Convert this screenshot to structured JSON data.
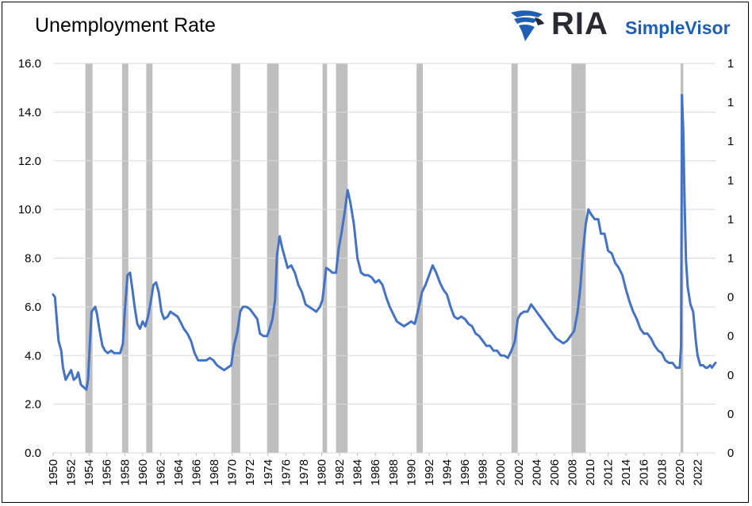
{
  "chart_data": {
    "type": "line",
    "title": "Unemployment Rate",
    "xlim": [
      1950,
      2024
    ],
    "ylim": [
      0,
      16
    ],
    "y_ticks": [
      "0.0",
      "2.0",
      "4.0",
      "6.0",
      "8.0",
      "10.0",
      "12.0",
      "14.0",
      "16.0"
    ],
    "y2_ticks": [
      "0",
      "0",
      "0",
      "0",
      "0",
      "1",
      "1",
      "1",
      "1",
      "1",
      "1"
    ],
    "x_ticks": [
      1950,
      1952,
      1954,
      1956,
      1958,
      1960,
      1962,
      1964,
      1966,
      1968,
      1970,
      1972,
      1974,
      1976,
      1978,
      1980,
      1982,
      1984,
      1986,
      1988,
      1990,
      1992,
      1994,
      1996,
      1998,
      2000,
      2002,
      2004,
      2006,
      2008,
      2010,
      2012,
      2014,
      2016,
      2018,
      2020,
      2022
    ],
    "grid": true,
    "line_color": "#4472c4",
    "recession_color": "#bfbfbf",
    "recessions": [
      [
        1953.6,
        1954.4
      ],
      [
        1957.7,
        1958.4
      ],
      [
        1960.4,
        1961.1
      ],
      [
        1969.9,
        1970.9
      ],
      [
        1973.9,
        1975.2
      ],
      [
        1980.1,
        1980.6
      ],
      [
        1981.6,
        1982.9
      ],
      [
        1990.6,
        1991.3
      ],
      [
        2001.2,
        2001.9
      ],
      [
        2007.9,
        2009.5
      ],
      [
        2020.1,
        2020.4
      ]
    ],
    "series": [
      {
        "values": [
          [
            1950.0,
            6.5
          ],
          [
            1950.2,
            6.4
          ],
          [
            1950.4,
            5.5
          ],
          [
            1950.6,
            4.6
          ],
          [
            1950.9,
            4.2
          ],
          [
            1951.1,
            3.5
          ],
          [
            1951.4,
            3.0
          ],
          [
            1951.7,
            3.2
          ],
          [
            1952.0,
            3.4
          ],
          [
            1952.3,
            3.0
          ],
          [
            1952.6,
            3.1
          ],
          [
            1952.8,
            3.3
          ],
          [
            1953.1,
            2.8
          ],
          [
            1953.4,
            2.7
          ],
          [
            1953.7,
            2.6
          ],
          [
            1953.9,
            3.0
          ],
          [
            1954.1,
            4.5
          ],
          [
            1954.3,
            5.8
          ],
          [
            1954.5,
            5.9
          ],
          [
            1954.7,
            6.0
          ],
          [
            1954.9,
            5.7
          ],
          [
            1955.2,
            5.0
          ],
          [
            1955.5,
            4.4
          ],
          [
            1955.8,
            4.2
          ],
          [
            1956.1,
            4.1
          ],
          [
            1956.5,
            4.2
          ],
          [
            1956.8,
            4.1
          ],
          [
            1957.1,
            4.1
          ],
          [
            1957.5,
            4.1
          ],
          [
            1957.8,
            4.5
          ],
          [
            1958.0,
            5.8
          ],
          [
            1958.3,
            7.3
          ],
          [
            1958.6,
            7.4
          ],
          [
            1958.9,
            6.6
          ],
          [
            1959.1,
            6.0
          ],
          [
            1959.4,
            5.3
          ],
          [
            1959.7,
            5.1
          ],
          [
            1960.0,
            5.4
          ],
          [
            1960.3,
            5.2
          ],
          [
            1960.6,
            5.6
          ],
          [
            1960.9,
            6.2
          ],
          [
            1961.2,
            6.9
          ],
          [
            1961.5,
            7.0
          ],
          [
            1961.8,
            6.6
          ],
          [
            1962.1,
            5.8
          ],
          [
            1962.4,
            5.5
          ],
          [
            1962.8,
            5.6
          ],
          [
            1963.1,
            5.8
          ],
          [
            1963.5,
            5.7
          ],
          [
            1963.9,
            5.6
          ],
          [
            1964.2,
            5.4
          ],
          [
            1964.6,
            5.1
          ],
          [
            1965.0,
            4.9
          ],
          [
            1965.4,
            4.6
          ],
          [
            1965.8,
            4.1
          ],
          [
            1966.2,
            3.8
          ],
          [
            1966.7,
            3.8
          ],
          [
            1967.1,
            3.8
          ],
          [
            1967.5,
            3.9
          ],
          [
            1967.9,
            3.8
          ],
          [
            1968.3,
            3.6
          ],
          [
            1968.7,
            3.5
          ],
          [
            1969.1,
            3.4
          ],
          [
            1969.5,
            3.5
          ],
          [
            1969.9,
            3.6
          ],
          [
            1970.2,
            4.4
          ],
          [
            1970.6,
            5.0
          ],
          [
            1970.9,
            5.8
          ],
          [
            1971.2,
            6.0
          ],
          [
            1971.6,
            6.0
          ],
          [
            1972.0,
            5.9
          ],
          [
            1972.4,
            5.7
          ],
          [
            1972.8,
            5.5
          ],
          [
            1973.1,
            4.9
          ],
          [
            1973.5,
            4.8
          ],
          [
            1973.9,
            4.8
          ],
          [
            1974.2,
            5.1
          ],
          [
            1974.5,
            5.5
          ],
          [
            1974.8,
            6.3
          ],
          [
            1975.0,
            8.1
          ],
          [
            1975.3,
            8.9
          ],
          [
            1975.6,
            8.4
          ],
          [
            1975.9,
            8.0
          ],
          [
            1976.2,
            7.6
          ],
          [
            1976.6,
            7.7
          ],
          [
            1977.0,
            7.4
          ],
          [
            1977.4,
            6.9
          ],
          [
            1977.8,
            6.6
          ],
          [
            1978.2,
            6.1
          ],
          [
            1978.6,
            6.0
          ],
          [
            1979.0,
            5.9
          ],
          [
            1979.4,
            5.8
          ],
          [
            1979.8,
            6.0
          ],
          [
            1980.1,
            6.3
          ],
          [
            1980.5,
            7.6
          ],
          [
            1980.9,
            7.5
          ],
          [
            1981.2,
            7.4
          ],
          [
            1981.6,
            7.4
          ],
          [
            1981.9,
            8.4
          ],
          [
            1982.2,
            9.0
          ],
          [
            1982.5,
            9.7
          ],
          [
            1982.9,
            10.8
          ],
          [
            1983.2,
            10.3
          ],
          [
            1983.6,
            9.4
          ],
          [
            1984.0,
            8.0
          ],
          [
            1984.4,
            7.4
          ],
          [
            1984.8,
            7.3
          ],
          [
            1985.2,
            7.3
          ],
          [
            1985.6,
            7.2
          ],
          [
            1986.0,
            7.0
          ],
          [
            1986.4,
            7.1
          ],
          [
            1986.8,
            6.9
          ],
          [
            1987.2,
            6.4
          ],
          [
            1987.6,
            6.0
          ],
          [
            1988.0,
            5.7
          ],
          [
            1988.4,
            5.4
          ],
          [
            1988.8,
            5.3
          ],
          [
            1989.2,
            5.2
          ],
          [
            1989.6,
            5.3
          ],
          [
            1990.0,
            5.4
          ],
          [
            1990.4,
            5.3
          ],
          [
            1990.8,
            5.9
          ],
          [
            1991.2,
            6.6
          ],
          [
            1991.6,
            6.9
          ],
          [
            1992.0,
            7.3
          ],
          [
            1992.4,
            7.7
          ],
          [
            1992.8,
            7.4
          ],
          [
            1993.2,
            7.0
          ],
          [
            1993.6,
            6.7
          ],
          [
            1994.0,
            6.5
          ],
          [
            1994.4,
            6.0
          ],
          [
            1994.8,
            5.6
          ],
          [
            1995.2,
            5.5
          ],
          [
            1995.6,
            5.6
          ],
          [
            1996.0,
            5.5
          ],
          [
            1996.4,
            5.3
          ],
          [
            1996.8,
            5.2
          ],
          [
            1997.2,
            4.9
          ],
          [
            1997.6,
            4.8
          ],
          [
            1998.0,
            4.6
          ],
          [
            1998.4,
            4.4
          ],
          [
            1998.8,
            4.4
          ],
          [
            1999.2,
            4.2
          ],
          [
            1999.6,
            4.2
          ],
          [
            2000.0,
            4.0
          ],
          [
            2000.4,
            4.0
          ],
          [
            2000.8,
            3.9
          ],
          [
            2001.2,
            4.2
          ],
          [
            2001.6,
            4.6
          ],
          [
            2001.9,
            5.5
          ],
          [
            2002.2,
            5.7
          ],
          [
            2002.6,
            5.8
          ],
          [
            2003.0,
            5.8
          ],
          [
            2003.4,
            6.1
          ],
          [
            2003.8,
            5.9
          ],
          [
            2004.2,
            5.7
          ],
          [
            2004.6,
            5.5
          ],
          [
            2005.0,
            5.3
          ],
          [
            2005.4,
            5.1
          ],
          [
            2005.8,
            4.9
          ],
          [
            2006.2,
            4.7
          ],
          [
            2006.6,
            4.6
          ],
          [
            2007.0,
            4.5
          ],
          [
            2007.4,
            4.6
          ],
          [
            2007.8,
            4.8
          ],
          [
            2008.2,
            5.0
          ],
          [
            2008.6,
            5.8
          ],
          [
            2008.9,
            6.8
          ],
          [
            2009.2,
            8.3
          ],
          [
            2009.5,
            9.4
          ],
          [
            2009.8,
            10.0
          ],
          [
            2010.1,
            9.8
          ],
          [
            2010.5,
            9.6
          ],
          [
            2010.9,
            9.6
          ],
          [
            2011.2,
            9.0
          ],
          [
            2011.6,
            9.0
          ],
          [
            2012.0,
            8.3
          ],
          [
            2012.4,
            8.2
          ],
          [
            2012.8,
            7.8
          ],
          [
            2013.2,
            7.6
          ],
          [
            2013.6,
            7.3
          ],
          [
            2014.0,
            6.7
          ],
          [
            2014.4,
            6.2
          ],
          [
            2014.8,
            5.8
          ],
          [
            2015.2,
            5.5
          ],
          [
            2015.6,
            5.1
          ],
          [
            2016.0,
            4.9
          ],
          [
            2016.4,
            4.9
          ],
          [
            2016.8,
            4.7
          ],
          [
            2017.2,
            4.4
          ],
          [
            2017.6,
            4.2
          ],
          [
            2018.0,
            4.1
          ],
          [
            2018.4,
            3.8
          ],
          [
            2018.8,
            3.7
          ],
          [
            2019.2,
            3.7
          ],
          [
            2019.6,
            3.5
          ],
          [
            2020.0,
            3.5
          ],
          [
            2020.15,
            4.4
          ],
          [
            2020.25,
            14.7
          ],
          [
            2020.4,
            13.2
          ],
          [
            2020.55,
            10.2
          ],
          [
            2020.7,
            7.9
          ],
          [
            2020.9,
            6.8
          ],
          [
            2021.2,
            6.1
          ],
          [
            2021.5,
            5.8
          ],
          [
            2021.8,
            4.6
          ],
          [
            2022.0,
            4.0
          ],
          [
            2022.3,
            3.6
          ],
          [
            2022.6,
            3.6
          ],
          [
            2022.9,
            3.5
          ],
          [
            2023.1,
            3.5
          ],
          [
            2023.4,
            3.6
          ],
          [
            2023.6,
            3.5
          ],
          [
            2023.8,
            3.6
          ],
          [
            2024.0,
            3.7
          ]
        ]
      }
    ]
  },
  "branding": {
    "logo_ria": "RIA",
    "logo_sv": "SimpleVisor",
    "eagle_icon": "eagle-icon"
  }
}
